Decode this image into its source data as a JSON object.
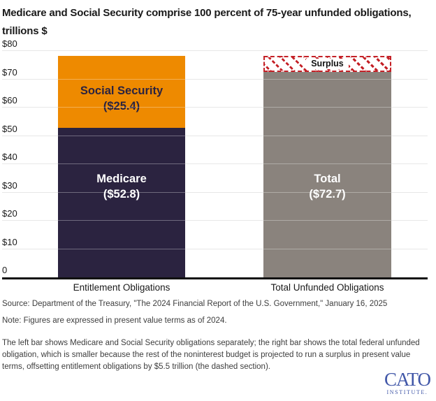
{
  "title": {
    "line1": "Medicare and Social Security comprise 100 percent of 75-year unfunded obligations,",
    "line2": "trillions $"
  },
  "chart_data": {
    "type": "bar",
    "stacked": true,
    "units": "trillions of dollars, present value",
    "ylim": [
      0,
      80
    ],
    "gridlines": true,
    "y_ticks": [
      {
        "value": 0,
        "label": "0"
      },
      {
        "value": 10,
        "label": "$10"
      },
      {
        "value": 20,
        "label": "$20"
      },
      {
        "value": 30,
        "label": "$30"
      },
      {
        "value": 40,
        "label": "$40"
      },
      {
        "value": 50,
        "label": "$50"
      },
      {
        "value": 60,
        "label": "$60"
      },
      {
        "value": 70,
        "label": "$70"
      },
      {
        "value": 80,
        "label": "$80"
      }
    ],
    "categories": [
      "Entitlement Obligations",
      "Total Unfunded Obligations"
    ],
    "bars": [
      {
        "category": "Entitlement Obligations",
        "segments": [
          {
            "name": "Medicare",
            "value": 52.8,
            "label": "Medicare",
            "value_label": "($52.8)",
            "color": "#2b2340",
            "text_color": "#ffffff"
          },
          {
            "name": "Social Security",
            "value": 25.4,
            "label": "Social Security",
            "value_label": "($25.4)",
            "color": "#ee8a00",
            "text_color": "#2b2340"
          }
        ],
        "total": 78.2
      },
      {
        "category": "Total Unfunded Obligations",
        "segments": [
          {
            "name": "Total",
            "value": 72.7,
            "label": "Total",
            "value_label": "($72.7)",
            "color": "#8a837d",
            "text_color": "#ffffff"
          }
        ],
        "overlay": {
          "name": "Surplus",
          "value": 5.5,
          "label": "Surplus",
          "border_color": "#c42127",
          "pattern": "dashed-red-diagonal-hatch"
        },
        "total": 72.7
      }
    ],
    "colors": {
      "medicare": "#2b2340",
      "social_security": "#ee8a00",
      "total": "#8a837d",
      "surplus_red": "#c42127",
      "gridline": "#dcdcdc",
      "axis": "#111111"
    }
  },
  "footer": {
    "source": "Source: Department of the Treasury, \"The 2024 Financial Report of the U.S. Government,\" January 16, 2025",
    "note": "Note: Figures are expressed in present value terms as of 2024.",
    "description": "The left bar shows Medicare and Social Security obligations separately; the right bar shows the total federal unfunded obligation, which is smaller because the rest of the noninterest budget is projected to run a surplus in present value terms, offsetting entitlement obligations by $5.5 trillion (the dashed section)."
  },
  "logo": {
    "name": "CATO",
    "subtitle": "INSTITUTE.",
    "color": "#4157a8"
  }
}
